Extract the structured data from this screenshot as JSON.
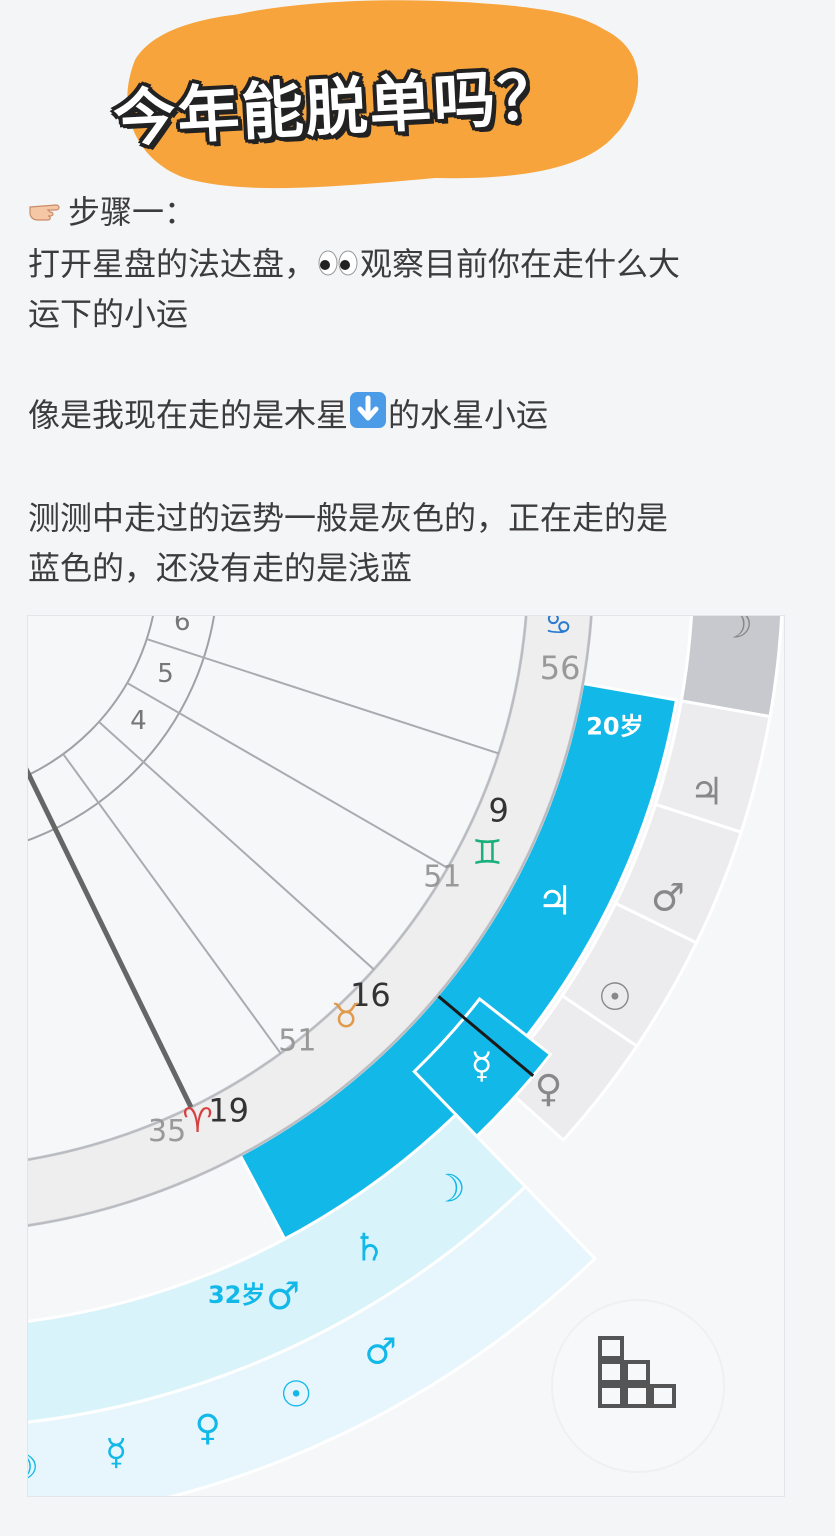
{
  "title": "今年能脱单吗？",
  "step": {
    "heading": "步骤一：",
    "line1_a": "打开星盘的法达盘，",
    "line1_b": "观察目前你在走什么大",
    "line2": "运下的小运",
    "line3_a": "像是我现在走的是木星",
    "line3_b": "的水星小运",
    "line4": "测测中走过的运势一般是灰色的，正在走的是",
    "line5": "蓝色的，还没有走的是浅蓝"
  },
  "icons": [
    "pointing-finger-icon",
    "eyes-icon",
    "down-arrow-icon",
    "grid-menu-icon"
  ],
  "colors": {
    "accent": "#12b8e8",
    "past": "#c8c9ce",
    "future": "#d9f3fb",
    "title_blob": "#f7a43c"
  },
  "chart": {
    "houses": [
      "6",
      "5",
      "4"
    ],
    "cusps": [
      {
        "degree": "56",
        "sign": "♋"
      },
      {
        "degree": "9"
      },
      {
        "sign": "♊",
        "minute": "51"
      },
      {
        "degree": "16",
        "sign": "♉",
        "minute": "51"
      },
      {
        "degree": "19",
        "sign": "♈",
        "minute": "35"
      }
    ],
    "age_labels": [
      "20岁",
      "32岁"
    ],
    "major_planet": "♃",
    "minor_planet": "☿",
    "gray_planets": [
      "☽",
      "♃",
      "♂",
      "☉",
      "♀"
    ],
    "future_planets": [
      "☽",
      "♄",
      "♂"
    ],
    "future_inner": [
      "♂"
    ],
    "future_outer": [
      "☉",
      "♀",
      "☿",
      "☽"
    ]
  }
}
